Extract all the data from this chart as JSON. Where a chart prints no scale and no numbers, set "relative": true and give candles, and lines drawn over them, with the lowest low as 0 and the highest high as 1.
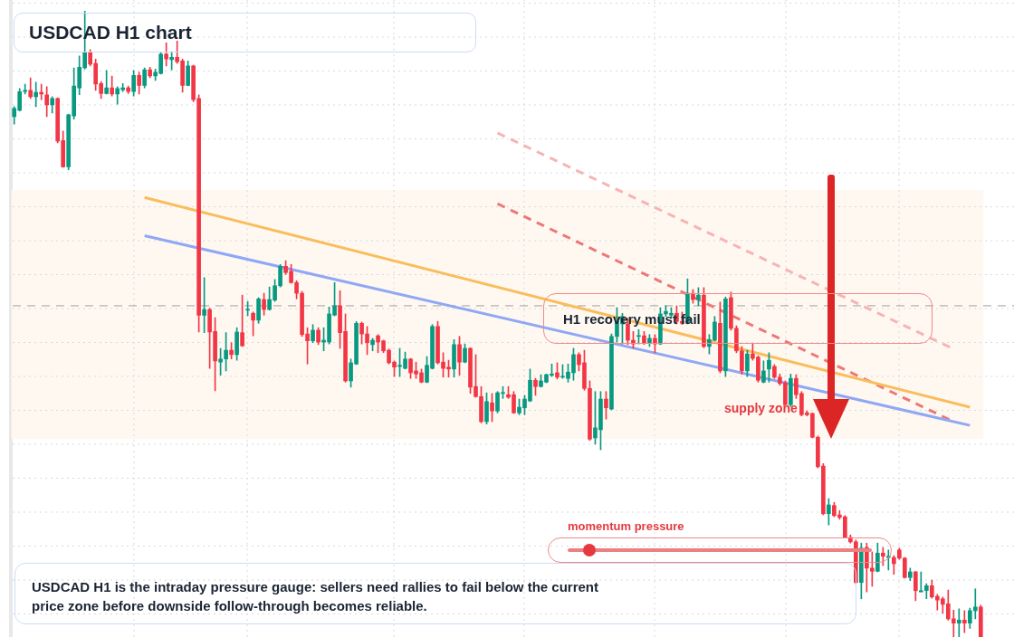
{
  "chart_data": {
    "type": "candlestick",
    "title": "USDCAD H1 chart",
    "relative": true,
    "grid": true,
    "legend": false,
    "categories": [
      null,
      null,
      null,
      null,
      null,
      null,
      null,
      null,
      null,
      null,
      null,
      null,
      null,
      null,
      null,
      null,
      null,
      null,
      null,
      null,
      null,
      null,
      null,
      null,
      null,
      null,
      null,
      null,
      null,
      null,
      null,
      null,
      null,
      null,
      null,
      null,
      null,
      null,
      null,
      null,
      null,
      null,
      null,
      null,
      null,
      null,
      null,
      null,
      null,
      null,
      null,
      null,
      null,
      null,
      null,
      null,
      null,
      null,
      null,
      null,
      null,
      null,
      null,
      null,
      null,
      null,
      null,
      null,
      null,
      null,
      null,
      null,
      null,
      null,
      null,
      null,
      null,
      null,
      null,
      null,
      null,
      null,
      null,
      null,
      null,
      null,
      null,
      null,
      null,
      null,
      null,
      null,
      null,
      null,
      null,
      null,
      null,
      null,
      null,
      null,
      null,
      null,
      null,
      null,
      null,
      null,
      null,
      null,
      null,
      null,
      null,
      null,
      null,
      null,
      null,
      null,
      null,
      null,
      null,
      null,
      null,
      null,
      null,
      null,
      null,
      null,
      null,
      null,
      null,
      null,
      null,
      null,
      null,
      null,
      null,
      null,
      null,
      null,
      null,
      null,
      null,
      null,
      null,
      null,
      null,
      null,
      null,
      null,
      null,
      null,
      null,
      null,
      null,
      null,
      null,
      null,
      null,
      null,
      null,
      null,
      null,
      null,
      null,
      null,
      null,
      null,
      null,
      null,
      null,
      null,
      null,
      null,
      null,
      null,
      null,
      null,
      null,
      null,
      null
    ],
    "ohlc": [
      [
        0.831,
        0.847,
        0.819,
        0.844
      ],
      [
        0.841,
        0.876,
        0.84,
        0.871
      ],
      [
        0.871,
        0.883,
        0.867,
        0.873
      ],
      [
        0.873,
        0.893,
        0.86,
        0.863
      ],
      [
        0.863,
        0.886,
        0.847,
        0.87
      ],
      [
        0.87,
        0.883,
        0.858,
        0.867
      ],
      [
        0.866,
        0.879,
        0.831,
        0.85
      ],
      [
        0.85,
        0.863,
        0.837,
        0.86
      ],
      [
        0.86,
        0.861,
        0.789,
        0.792
      ],
      [
        0.793,
        0.808,
        0.75,
        0.751
      ],
      [
        0.751,
        0.835,
        0.746,
        0.834
      ],
      [
        0.832,
        0.909,
        0.827,
        0.88
      ],
      [
        0.877,
        0.928,
        0.866,
        0.91
      ],
      [
        0.909,
        1.0,
        0.907,
        0.933
      ],
      [
        0.933,
        0.938,
        0.912,
        0.915
      ],
      [
        0.916,
        0.923,
        0.873,
        0.883
      ],
      [
        0.884,
        0.887,
        0.86,
        0.868
      ],
      [
        0.868,
        0.905,
        0.867,
        0.877
      ],
      [
        0.877,
        0.896,
        0.864,
        0.867
      ],
      [
        0.867,
        0.879,
        0.851,
        0.876
      ],
      [
        0.874,
        0.884,
        0.871,
        0.877
      ],
      [
        0.877,
        0.88,
        0.868,
        0.871
      ],
      [
        0.871,
        0.905,
        0.864,
        0.897
      ],
      [
        0.897,
        0.902,
        0.867,
        0.881
      ],
      [
        0.881,
        0.909,
        0.877,
        0.906
      ],
      [
        0.906,
        0.91,
        0.893,
        0.896
      ],
      [
        0.896,
        0.907,
        0.889,
        0.902
      ],
      [
        0.9,
        0.933,
        0.899,
        0.931
      ],
      [
        0.931,
        0.949,
        0.912,
        0.923
      ],
      [
        0.922,
        0.935,
        0.906,
        0.926
      ],
      [
        0.926,
        0.952,
        0.916,
        0.919
      ],
      [
        0.92,
        0.923,
        0.87,
        0.881
      ],
      [
        0.881,
        0.92,
        0.88,
        0.912
      ],
      [
        0.912,
        0.913,
        0.855,
        0.858
      ],
      [
        0.86,
        0.866,
        0.487,
        0.514
      ],
      [
        0.514,
        0.574,
        0.486,
        0.523
      ],
      [
        0.523,
        0.525,
        0.429,
        0.487
      ],
      [
        0.488,
        0.51,
        0.393,
        0.441
      ],
      [
        0.439,
        0.461,
        0.418,
        0.444
      ],
      [
        0.444,
        0.486,
        0.425,
        0.458
      ],
      [
        0.458,
        0.47,
        0.444,
        0.451
      ],
      [
        0.451,
        0.494,
        0.442,
        0.487
      ],
      [
        0.486,
        0.546,
        0.464,
        0.465
      ],
      [
        0.522,
        0.536,
        0.513,
        0.523
      ],
      [
        0.517,
        0.519,
        0.481,
        0.506
      ],
      [
        0.506,
        0.542,
        0.501,
        0.54
      ],
      [
        0.539,
        0.549,
        0.514,
        0.523
      ],
      [
        0.523,
        0.559,
        0.522,
        0.539
      ],
      [
        0.538,
        0.571,
        0.536,
        0.561
      ],
      [
        0.561,
        0.595,
        0.559,
        0.592
      ],
      [
        0.592,
        0.601,
        0.579,
        0.582
      ],
      [
        0.584,
        0.595,
        0.565,
        0.566
      ],
      [
        0.566,
        0.569,
        0.54,
        0.549
      ],
      [
        0.549,
        0.552,
        0.48,
        0.483
      ],
      [
        0.484,
        0.494,
        0.436,
        0.473
      ],
      [
        0.473,
        0.499,
        0.47,
        0.49
      ],
      [
        0.49,
        0.494,
        0.467,
        0.471
      ],
      [
        0.471,
        0.494,
        0.457,
        0.474
      ],
      [
        0.471,
        0.527,
        0.468,
        0.516
      ],
      [
        0.514,
        0.566,
        0.513,
        0.529
      ],
      [
        0.529,
        0.553,
        0.461,
        0.486
      ],
      [
        0.488,
        0.516,
        0.407,
        0.409
      ],
      [
        0.409,
        0.444,
        0.399,
        0.438
      ],
      [
        0.436,
        0.504,
        0.435,
        0.501
      ],
      [
        0.501,
        0.503,
        0.468,
        0.484
      ],
      [
        0.484,
        0.496,
        0.451,
        0.47
      ],
      [
        0.467,
        0.477,
        0.457,
        0.474
      ],
      [
        0.481,
        0.483,
        0.454,
        0.471
      ],
      [
        0.473,
        0.474,
        0.454,
        0.457
      ],
      [
        0.458,
        0.46,
        0.436,
        0.438
      ],
      [
        0.439,
        0.441,
        0.416,
        0.431
      ],
      [
        0.432,
        0.461,
        0.416,
        0.434
      ],
      [
        0.429,
        0.455,
        0.428,
        0.444
      ],
      [
        0.444,
        0.445,
        0.413,
        0.422
      ],
      [
        0.425,
        0.439,
        0.413,
        0.42
      ],
      [
        0.422,
        0.428,
        0.406,
        0.407
      ],
      [
        0.407,
        0.448,
        0.406,
        0.434
      ],
      [
        0.429,
        0.499,
        0.428,
        0.496
      ],
      [
        0.496,
        0.504,
        0.436,
        0.438
      ],
      [
        0.439,
        0.454,
        0.415,
        0.429
      ],
      [
        0.431,
        0.442,
        0.415,
        0.428
      ],
      [
        0.428,
        0.475,
        0.415,
        0.467
      ],
      [
        0.467,
        0.48,
        0.418,
        0.439
      ],
      [
        0.439,
        0.468,
        0.438,
        0.461
      ],
      [
        0.461,
        0.462,
        0.389,
        0.399
      ],
      [
        0.4,
        0.451,
        0.383,
        0.384
      ],
      [
        0.384,
        0.4,
        0.342,
        0.344
      ],
      [
        0.344,
        0.39,
        0.34,
        0.376
      ],
      [
        0.374,
        0.389,
        0.344,
        0.361
      ],
      [
        0.361,
        0.392,
        0.358,
        0.39
      ],
      [
        0.389,
        0.4,
        0.381,
        0.39
      ],
      [
        0.387,
        0.4,
        0.381,
        0.383
      ],
      [
        0.387,
        0.392,
        0.357,
        0.358
      ],
      [
        0.358,
        0.38,
        0.355,
        0.367
      ],
      [
        0.366,
        0.386,
        0.355,
        0.38
      ],
      [
        0.377,
        0.428,
        0.376,
        0.41
      ],
      [
        0.41,
        0.413,
        0.386,
        0.4
      ],
      [
        0.4,
        0.419,
        0.399,
        0.409
      ],
      [
        0.407,
        0.42,
        0.406,
        0.419
      ],
      [
        0.418,
        0.436,
        0.416,
        0.42
      ],
      [
        0.422,
        0.438,
        0.412,
        0.415
      ],
      [
        0.415,
        0.435,
        0.413,
        0.416
      ],
      [
        0.413,
        0.436,
        0.407,
        0.423
      ],
      [
        0.422,
        0.461,
        0.41,
        0.451
      ],
      [
        0.451,
        0.454,
        0.425,
        0.435
      ],
      [
        0.438,
        0.458,
        0.394,
        0.397
      ],
      [
        0.397,
        0.409,
        0.314,
        0.316
      ],
      [
        0.318,
        0.392,
        0.308,
        0.334
      ],
      [
        0.331,
        0.392,
        0.299,
        0.38
      ],
      [
        0.38,
        0.392,
        0.348,
        0.366
      ],
      [
        0.364,
        0.484,
        0.363,
        0.48
      ],
      [
        0.48,
        0.526,
        0.471,
        0.504
      ],
      [
        0.5,
        0.517,
        0.468,
        0.512
      ],
      [
        0.5,
        0.509,
        0.467,
        0.474
      ],
      [
        0.474,
        0.488,
        0.461,
        0.468
      ],
      [
        0.48,
        0.491,
        0.468,
        0.481
      ],
      [
        0.481,
        0.488,
        0.467,
        0.47
      ],
      [
        0.47,
        0.483,
        0.464,
        0.477
      ],
      [
        0.477,
        0.483,
        0.454,
        0.468
      ],
      [
        0.468,
        0.526,
        0.467,
        0.516
      ],
      [
        0.516,
        0.529,
        0.512,
        0.52
      ],
      [
        0.514,
        0.526,
        0.509,
        0.517
      ],
      [
        0.517,
        0.529,
        0.5,
        0.504
      ],
      [
        0.504,
        0.519,
        0.499,
        0.501
      ],
      [
        0.501,
        0.572,
        0.5,
        0.549
      ],
      [
        0.549,
        0.555,
        0.533,
        0.539
      ],
      [
        0.539,
        0.558,
        0.529,
        0.546
      ],
      [
        0.546,
        0.558,
        0.462,
        0.464
      ],
      [
        0.464,
        0.483,
        0.452,
        0.475
      ],
      [
        0.474,
        0.512,
        0.473,
        0.503
      ],
      [
        0.501,
        0.535,
        0.422,
        0.425
      ],
      [
        0.425,
        0.543,
        0.416,
        0.54
      ],
      [
        0.542,
        0.551,
        0.49,
        0.493
      ],
      [
        0.493,
        0.497,
        0.454,
        0.457
      ],
      [
        0.457,
        0.464,
        0.42,
        0.425
      ],
      [
        0.425,
        0.458,
        0.416,
        0.452
      ],
      [
        0.452,
        0.468,
        0.442,
        0.445
      ],
      [
        0.447,
        0.449,
        0.407,
        0.41
      ],
      [
        0.407,
        0.441,
        0.406,
        0.425
      ],
      [
        0.428,
        0.454,
        0.407,
        0.442
      ],
      [
        0.432,
        0.435,
        0.413,
        0.415
      ],
      [
        0.415,
        0.42,
        0.402,
        0.405
      ],
      [
        0.406,
        0.409,
        0.37,
        0.371
      ],
      [
        0.371,
        0.42,
        0.368,
        0.413
      ],
      [
        0.413,
        0.419,
        0.381,
        0.387
      ],
      [
        0.389,
        0.392,
        0.353,
        0.355
      ],
      [
        0.358,
        0.361,
        0.353,
        0.355
      ],
      [
        0.357,
        0.358,
        0.318,
        0.319
      ],
      [
        0.319,
        0.321,
        0.27,
        0.272
      ],
      [
        0.273,
        0.277,
        0.195,
        0.197
      ],
      [
        0.197,
        0.221,
        0.179,
        0.211
      ],
      [
        0.21,
        0.215,
        0.192,
        0.194
      ],
      [
        0.195,
        0.202,
        0.188,
        0.191
      ],
      [
        0.192,
        0.194,
        0.158,
        0.159
      ],
      [
        0.159,
        0.163,
        0.15,
        0.152
      ],
      [
        0.152,
        0.155,
        0.085,
        0.087
      ],
      [
        0.087,
        0.15,
        0.061,
        0.142
      ],
      [
        0.143,
        0.15,
        0.072,
        0.11
      ],
      [
        0.11,
        0.136,
        0.081,
        0.105
      ],
      [
        0.105,
        0.15,
        0.104,
        0.134
      ],
      [
        0.134,
        0.143,
        0.114,
        0.129
      ],
      [
        0.127,
        0.139,
        0.107,
        0.129
      ],
      [
        0.127,
        0.13,
        0.1,
        0.117
      ],
      [
        0.139,
        0.142,
        0.124,
        0.126
      ],
      [
        0.126,
        0.127,
        0.094,
        0.095
      ],
      [
        0.095,
        0.11,
        0.09,
        0.104
      ],
      [
        0.104,
        0.105,
        0.058,
        0.074
      ],
      [
        0.072,
        0.104,
        0.072,
        0.074
      ],
      [
        0.074,
        0.085,
        0.061,
        0.082
      ],
      [
        0.082,
        0.091,
        0.062,
        0.064
      ],
      [
        0.065,
        0.068,
        0.043,
        0.059
      ],
      [
        0.061,
        0.064,
        0.038,
        0.052
      ],
      [
        0.053,
        0.075,
        0.027,
        0.029
      ],
      [
        0.029,
        0.043,
        0.0,
        0.022
      ],
      [
        0.022,
        0.045,
        0.0,
        0.027
      ],
      [
        0.027,
        0.042,
        0.007,
        0.022
      ],
      [
        0.022,
        0.046,
        0.014,
        0.042
      ],
      [
        0.042,
        0.077,
        0.029,
        0.048
      ],
      [
        0.048,
        0.051,
        0.0,
        0.0
      ]
    ],
    "series": [
      {
        "type": "line",
        "color": "#f9bd5c",
        "line_style": "solid",
        "values": [
          null,
          null,
          null,
          null,
          null,
          null,
          null,
          null,
          null,
          null,
          null,
          null,
          null,
          null,
          null,
          null,
          null,
          null,
          null,
          null,
          null,
          null,
          null,
          null,
          0.702,
          null,
          null,
          null,
          null,
          null,
          null,
          null,
          null,
          null,
          null,
          null,
          null,
          null,
          null,
          null,
          null,
          null,
          null,
          null,
          null,
          null,
          null,
          null,
          null,
          null,
          null,
          null,
          null,
          null,
          null,
          null,
          null,
          null,
          null,
          null,
          null,
          null,
          null,
          null,
          null,
          null,
          null,
          null,
          null,
          null,
          null,
          null,
          null,
          null,
          null,
          null,
          null,
          null,
          null,
          null,
          null,
          null,
          null,
          null,
          null,
          null,
          null,
          null,
          null,
          null,
          null,
          null,
          null,
          null,
          null,
          null,
          null,
          null,
          null,
          null,
          null,
          null,
          null,
          null,
          null,
          null,
          null,
          null,
          null,
          null,
          null,
          null,
          null,
          null,
          null,
          null,
          null,
          null,
          null,
          null,
          null,
          null,
          null,
          null,
          null,
          null,
          null,
          null,
          null,
          null,
          null,
          null,
          null,
          null,
          null,
          null,
          null,
          null,
          null,
          null,
          null,
          null,
          null,
          null,
          null,
          null,
          null,
          null,
          null,
          null,
          null,
          null,
          null,
          null,
          null,
          null,
          null,
          null,
          null,
          null,
          null,
          null,
          null,
          null,
          null,
          null,
          null,
          null,
          null,
          null,
          null,
          null,
          null,
          null,
          null,
          null,
          0.367,
          null,
          null
        ]
      },
      {
        "type": "line",
        "color": "#8ea8f5",
        "line_style": "solid",
        "values": [
          null,
          null,
          null,
          null,
          null,
          null,
          null,
          null,
          null,
          null,
          null,
          null,
          null,
          null,
          null,
          null,
          null,
          null,
          null,
          null,
          null,
          null,
          null,
          null,
          0.641,
          null,
          null,
          null,
          null,
          null,
          null,
          null,
          null,
          null,
          null,
          null,
          null,
          null,
          null,
          null,
          null,
          null,
          null,
          null,
          null,
          null,
          null,
          null,
          null,
          null,
          null,
          null,
          null,
          null,
          null,
          null,
          null,
          null,
          null,
          null,
          null,
          null,
          null,
          null,
          null,
          null,
          null,
          null,
          null,
          null,
          null,
          null,
          null,
          null,
          null,
          null,
          null,
          null,
          null,
          null,
          null,
          null,
          null,
          null,
          null,
          null,
          null,
          null,
          null,
          null,
          null,
          null,
          null,
          null,
          null,
          null,
          null,
          null,
          null,
          null,
          null,
          null,
          null,
          null,
          null,
          null,
          null,
          null,
          null,
          null,
          null,
          null,
          null,
          null,
          null,
          null,
          null,
          null,
          null,
          null,
          null,
          null,
          null,
          null,
          null,
          null,
          null,
          null,
          null,
          null,
          null,
          null,
          null,
          null,
          null,
          null,
          null,
          null,
          null,
          null,
          null,
          null,
          null,
          null,
          null,
          null,
          null,
          null,
          null,
          null,
          null,
          null,
          null,
          null,
          null,
          null,
          null,
          null,
          null,
          null,
          null,
          null,
          null,
          null,
          null,
          null,
          null,
          null,
          null,
          null,
          null,
          null,
          null,
          null,
          null,
          null,
          0.338,
          null,
          null
        ]
      },
      {
        "type": "line",
        "color": "#ee7777",
        "line_style": "dashed",
        "values": [
          null,
          null,
          null,
          null,
          null,
          null,
          null,
          null,
          null,
          null,
          null,
          null,
          null,
          null,
          null,
          null,
          null,
          null,
          null,
          null,
          null,
          null,
          null,
          null,
          null,
          null,
          null,
          null,
          null,
          null,
          null,
          null,
          null,
          null,
          null,
          null,
          null,
          null,
          null,
          null,
          null,
          null,
          null,
          null,
          null,
          null,
          null,
          null,
          null,
          null,
          null,
          null,
          null,
          null,
          null,
          null,
          null,
          null,
          null,
          null,
          null,
          null,
          null,
          null,
          null,
          null,
          null,
          null,
          null,
          null,
          null,
          null,
          null,
          null,
          null,
          null,
          null,
          null,
          null,
          null,
          null,
          null,
          null,
          null,
          null,
          null,
          null,
          null,
          null,
          0.692,
          null,
          null,
          null,
          null,
          null,
          null,
          null,
          null,
          null,
          null,
          null,
          null,
          null,
          null,
          null,
          null,
          null,
          null,
          null,
          null,
          null,
          null,
          null,
          null,
          null,
          null,
          null,
          null,
          null,
          null,
          null,
          null,
          null,
          null,
          null,
          null,
          null,
          null,
          null,
          null,
          null,
          null,
          null,
          null,
          null,
          null,
          null,
          null,
          null,
          null,
          null,
          null,
          null,
          null,
          null,
          null,
          null,
          null,
          null,
          null,
          null,
          null,
          null,
          null,
          null,
          null,
          null,
          null,
          null,
          null,
          null,
          null,
          null,
          null,
          null,
          null,
          null,
          null,
          null,
          null,
          null,
          null,
          null,
          0.344,
          null,
          null,
          null,
          null,
          null
        ]
      },
      {
        "type": "line",
        "color": "#f6b4b4",
        "line_style": "dashed",
        "values": [
          null,
          null,
          null,
          null,
          null,
          null,
          null,
          null,
          null,
          null,
          null,
          null,
          null,
          null,
          null,
          null,
          null,
          null,
          null,
          null,
          null,
          null,
          null,
          null,
          null,
          null,
          null,
          null,
          null,
          null,
          null,
          null,
          null,
          null,
          null,
          null,
          null,
          null,
          null,
          null,
          null,
          null,
          null,
          null,
          null,
          null,
          null,
          null,
          null,
          null,
          null,
          null,
          null,
          null,
          null,
          null,
          null,
          null,
          null,
          null,
          null,
          null,
          null,
          null,
          null,
          null,
          null,
          null,
          null,
          null,
          null,
          null,
          null,
          null,
          null,
          null,
          null,
          null,
          null,
          null,
          null,
          null,
          null,
          null,
          null,
          null,
          null,
          null,
          null,
          0.805,
          null,
          null,
          null,
          null,
          null,
          null,
          null,
          null,
          null,
          null,
          null,
          null,
          null,
          null,
          null,
          null,
          null,
          null,
          null,
          null,
          null,
          null,
          null,
          null,
          null,
          null,
          null,
          null,
          null,
          null,
          null,
          null,
          null,
          null,
          null,
          null,
          null,
          null,
          null,
          null,
          null,
          null,
          null,
          null,
          null,
          null,
          null,
          null,
          null,
          null,
          null,
          null,
          null,
          null,
          null,
          null,
          null,
          null,
          null,
          null,
          null,
          null,
          null,
          null,
          null,
          null,
          null,
          null,
          null,
          null,
          null,
          null,
          null,
          null,
          null,
          null,
          null,
          null,
          null,
          null,
          null,
          null,
          null,
          0.46,
          null,
          null,
          null,
          null,
          null
        ]
      }
    ],
    "ref_lines": [
      {
        "axis": "y",
        "value": 0.529,
        "color": "#9e9e9e",
        "line_style": "dashed"
      }
    ],
    "bands": [
      {
        "axis": "y",
        "from": 0.316,
        "to": 0.714,
        "label": "supply zone",
        "color": "#fff8f1"
      }
    ],
    "annotations": [
      "H1 recovery must fail",
      "momentum pressure",
      "USDCAD H1 is the intraday pressure gauge: sellers need rallies to fail below the current price zone before downside follow-through becomes reliable."
    ]
  }
}
